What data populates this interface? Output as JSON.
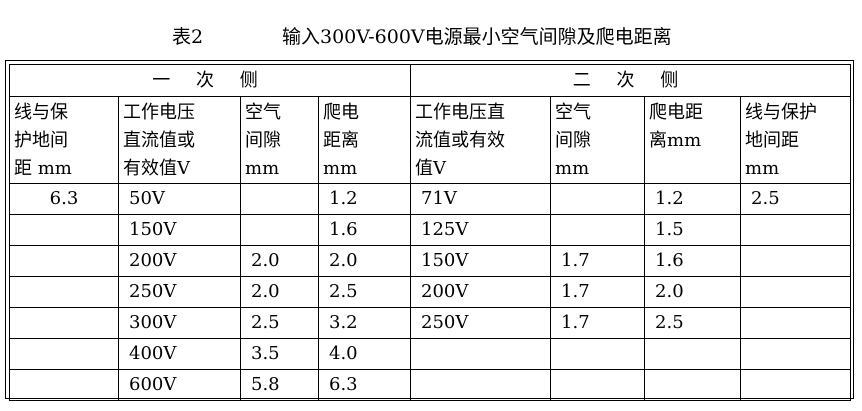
{
  "caption": {
    "number": "表2",
    "title": "输入300V-600V电源最小空气间隙及爬电距离"
  },
  "table": {
    "group_primary": "一 次 侧",
    "group_secondary": "二 次 侧",
    "headers": [
      [
        "线与保",
        "护地间",
        "距 mm"
      ],
      [
        "工作电压",
        "直流值或",
        "有效值V"
      ],
      [
        "空气",
        "间隙",
        "mm"
      ],
      [
        "爬电",
        "距离",
        "mm"
      ],
      [
        "工作电压直",
        "流值或有效",
        "值V"
      ],
      [
        "空气",
        "间隙",
        "mm"
      ],
      [
        "爬电距",
        "离mm"
      ],
      [
        "线与保护",
        "地间距",
        "mm"
      ]
    ],
    "rows": [
      [
        "6.3",
        "50V",
        "",
        "1.2",
        "71V",
        "",
        "1.2",
        "2.5"
      ],
      [
        "",
        "150V",
        "",
        "1.6",
        "125V",
        "",
        "1.5",
        ""
      ],
      [
        "",
        "200V",
        "2.0",
        "2.0",
        "150V",
        "1.7",
        "1.6",
        ""
      ],
      [
        "",
        "250V",
        "2.0",
        "2.5",
        "200V",
        "1.7",
        "2.0",
        ""
      ],
      [
        "",
        "300V",
        "2.5",
        "3.2",
        "250V",
        "1.7",
        "2.5",
        ""
      ],
      [
        "",
        "400V",
        "3.5",
        "4.0",
        "",
        "",
        "",
        ""
      ],
      [
        "",
        "600V",
        "5.8",
        "6.3",
        "",
        "",
        "",
        ""
      ]
    ]
  }
}
